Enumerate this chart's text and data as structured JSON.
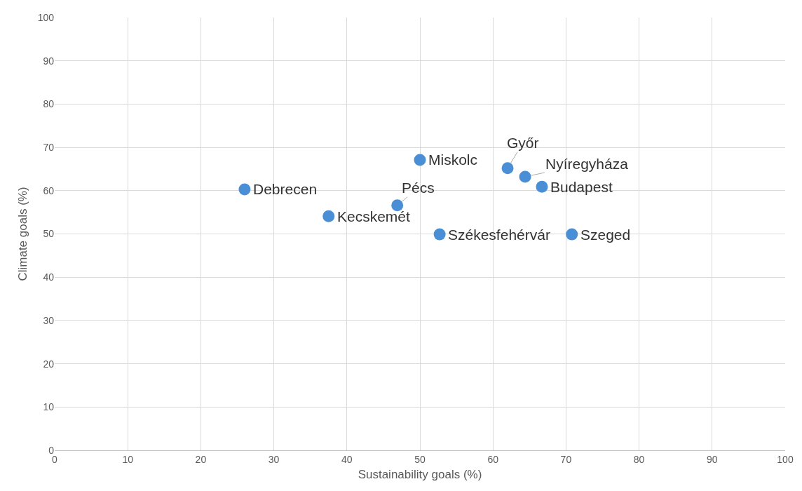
{
  "chart_data": {
    "type": "scatter",
    "xlabel": "Sustainability goals (%)",
    "ylabel": "Climate goals (%)",
    "x": [
      26,
      37.5,
      46.9,
      50,
      52.7,
      62,
      64.4,
      66.7,
      70.8
    ],
    "series": [
      {
        "color": "#4a8fd6",
        "values": [
          60.3,
          54.1,
          56.6,
          67.1,
          49.9,
          65.2,
          63.2,
          60.9,
          49.9
        ]
      }
    ],
    "annotations": [
      {
        "text": "Debrecen",
        "x": 26,
        "y": 60.3
      },
      {
        "text": "Kecskemét",
        "x": 37.5,
        "y": 54.1
      },
      {
        "text": "Pécs",
        "x": 46.9,
        "y": 56.6
      },
      {
        "text": "Miskolc",
        "x": 50,
        "y": 67.1
      },
      {
        "text": "Székesfehérvár",
        "x": 52.7,
        "y": 49.9
      },
      {
        "text": "Győr",
        "x": 62,
        "y": 65.2
      },
      {
        "text": "Nyíregyháza",
        "x": 64.4,
        "y": 63.2
      },
      {
        "text": "Budapest",
        "x": 66.7,
        "y": 60.9
      },
      {
        "text": "Szeged",
        "x": 70.8,
        "y": 49.9
      }
    ],
    "xlim": [
      0,
      100
    ],
    "xticks": [
      0,
      10,
      20,
      30,
      40,
      50,
      60,
      70,
      80,
      90,
      100
    ],
    "ylim": [
      0,
      100
    ],
    "yticks": [
      0,
      10,
      20,
      30,
      40,
      50,
      60,
      70,
      80,
      90,
      100
    ],
    "grid": true,
    "marker": "circle"
  }
}
